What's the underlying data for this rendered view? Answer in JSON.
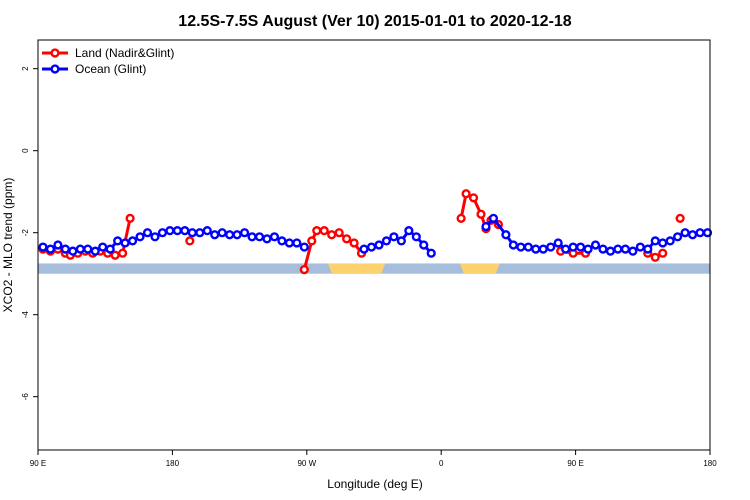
{
  "chart_data": {
    "type": "line",
    "title": "12.5S-7.5S August (Ver 10)   2015-01-01 to 2020-12-18",
    "xlabel": "Longitude (deg E)",
    "ylabel": "XCO2 - MLO trend (ppm)",
    "xlim": [
      -90,
      180
    ],
    "ylim": [
      -7.3,
      2.7
    ],
    "xticks": [
      {
        "value": -90,
        "label": "90 E"
      },
      {
        "value": -36,
        "label": "180"
      },
      {
        "value": 18,
        "label": "90 W"
      },
      {
        "value": 72,
        "label": "0"
      },
      {
        "value": 126,
        "label": "90 E"
      },
      {
        "value": 180,
        "label": "180"
      }
    ],
    "yticks": [
      {
        "value": 2,
        "label": "2"
      },
      {
        "value": 0,
        "label": "0"
      },
      {
        "value": -2,
        "label": "-2"
      },
      {
        "value": -4,
        "label": "-4"
      },
      {
        "value": -6,
        "label": "-6"
      }
    ],
    "grid": false,
    "legend_position": "top-left",
    "colors": {
      "land": "#ff0000",
      "ocean": "#0000ff",
      "band_ocean": "#a6bddb",
      "band_land": "#fdd26e"
    },
    "surface_band": {
      "y_top": -2.75,
      "y_bottom": -3.0,
      "land_segments": [
        [
          26.5,
          49.5
        ],
        [
          79.5,
          95.5
        ]
      ]
    },
    "series": [
      {
        "name": "Land (Nadir&Glint)",
        "color": "#ff0000",
        "points": [
          [
            -88,
            -2.4
          ],
          [
            -85,
            -2.45
          ],
          [
            -82,
            -2.4
          ],
          [
            -79,
            -2.5
          ],
          [
            -77,
            -2.55
          ],
          [
            -74,
            -2.5
          ],
          [
            -71,
            -2.45
          ],
          [
            -68,
            -2.5
          ],
          [
            -65,
            -2.45
          ],
          [
            -62,
            -2.5
          ],
          [
            -59,
            -2.55
          ],
          [
            -56,
            -2.5
          ],
          [
            -53,
            -1.65
          ],
          [
            -29,
            -2.2
          ],
          [
            17,
            -2.9
          ],
          [
            20,
            -2.2
          ],
          [
            22,
            -1.95
          ],
          [
            25,
            -1.95
          ],
          [
            28,
            -2.05
          ],
          [
            31,
            -2.0
          ],
          [
            34,
            -2.15
          ],
          [
            37,
            -2.25
          ],
          [
            40,
            -2.5
          ],
          [
            80,
            -1.65
          ],
          [
            82,
            -1.05
          ],
          [
            85,
            -1.15
          ],
          [
            88,
            -1.55
          ],
          [
            90,
            -1.9
          ],
          [
            92,
            -1.7
          ],
          [
            95,
            -1.8
          ],
          [
            120,
            -2.45
          ],
          [
            125,
            -2.5
          ],
          [
            130,
            -2.5
          ],
          [
            155,
            -2.5
          ],
          [
            158,
            -2.6
          ],
          [
            161,
            -2.5
          ],
          [
            168,
            -1.65
          ]
        ]
      },
      {
        "name": "Ocean (Glint)",
        "color": "#0000ff",
        "points": [
          [
            -88,
            -2.35
          ],
          [
            -85,
            -2.4
          ],
          [
            -82,
            -2.3
          ],
          [
            -79,
            -2.4
          ],
          [
            -76,
            -2.45
          ],
          [
            -73,
            -2.4
          ],
          [
            -70,
            -2.4
          ],
          [
            -67,
            -2.45
          ],
          [
            -64,
            -2.35
          ],
          [
            -61,
            -2.4
          ],
          [
            -58,
            -2.2
          ],
          [
            -55,
            -2.25
          ],
          [
            -52,
            -2.2
          ],
          [
            -49,
            -2.1
          ],
          [
            -46,
            -2.0
          ],
          [
            -43,
            -2.1
          ],
          [
            -40,
            -2.0
          ],
          [
            -37,
            -1.95
          ],
          [
            -34,
            -1.95
          ],
          [
            -31,
            -1.95
          ],
          [
            -28,
            -2.0
          ],
          [
            -25,
            -2.0
          ],
          [
            -22,
            -1.95
          ],
          [
            -19,
            -2.05
          ],
          [
            -16,
            -2.0
          ],
          [
            -13,
            -2.05
          ],
          [
            -10,
            -2.05
          ],
          [
            -7,
            -2.0
          ],
          [
            -4,
            -2.1
          ],
          [
            -1,
            -2.1
          ],
          [
            2,
            -2.15
          ],
          [
            5,
            -2.1
          ],
          [
            8,
            -2.2
          ],
          [
            11,
            -2.25
          ],
          [
            14,
            -2.25
          ],
          [
            17,
            -2.35
          ],
          [
            41,
            -2.4
          ],
          [
            44,
            -2.35
          ],
          [
            47,
            -2.3
          ],
          [
            50,
            -2.2
          ],
          [
            53,
            -2.1
          ],
          [
            56,
            -2.2
          ],
          [
            59,
            -1.95
          ],
          [
            62,
            -2.1
          ],
          [
            65,
            -2.3
          ],
          [
            68,
            -2.5
          ],
          [
            90,
            -1.85
          ],
          [
            93,
            -1.65
          ],
          [
            98,
            -2.05
          ],
          [
            101,
            -2.3
          ],
          [
            104,
            -2.35
          ],
          [
            107,
            -2.35
          ],
          [
            110,
            -2.4
          ],
          [
            113,
            -2.4
          ],
          [
            116,
            -2.35
          ],
          [
            119,
            -2.25
          ],
          [
            122,
            -2.4
          ],
          [
            125,
            -2.35
          ],
          [
            128,
            -2.35
          ],
          [
            131,
            -2.4
          ],
          [
            134,
            -2.3
          ],
          [
            137,
            -2.4
          ],
          [
            140,
            -2.45
          ],
          [
            143,
            -2.4
          ],
          [
            146,
            -2.4
          ],
          [
            149,
            -2.45
          ],
          [
            152,
            -2.35
          ],
          [
            155,
            -2.4
          ],
          [
            158,
            -2.2
          ],
          [
            161,
            -2.25
          ],
          [
            164,
            -2.2
          ],
          [
            167,
            -2.1
          ],
          [
            170,
            -2.0
          ],
          [
            173,
            -2.05
          ],
          [
            176,
            -2.0
          ],
          [
            179,
            -2.0
          ]
        ]
      }
    ]
  }
}
